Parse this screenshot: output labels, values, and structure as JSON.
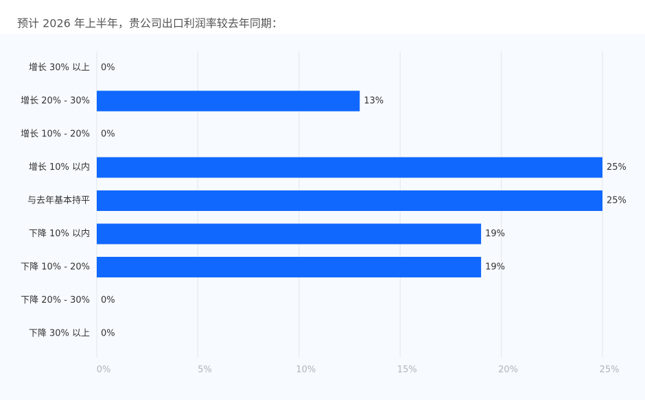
{
  "chart_data": {
    "type": "bar",
    "orientation": "horizontal",
    "title": "预计 2026 年上半年，贵公司出口利润率较去年同期：",
    "categories": [
      "增长 30% 以上",
      "增长 20% - 30%",
      "增长 10% - 20%",
      "增长 10% 以内",
      "与去年基本持平",
      "下降 10% 以内",
      "下降 10% - 20%",
      "下降 20% - 30%",
      "下降 30% 以上"
    ],
    "values": [
      0,
      13,
      0,
      25,
      25,
      19,
      19,
      0,
      0
    ],
    "value_labels": [
      "0%",
      "13%",
      "0%",
      "25%",
      "25%",
      "19%",
      "19%",
      "0%",
      "0%"
    ],
    "color": "#1068ff",
    "xlim": [
      0,
      25
    ],
    "xticks": [
      {
        "value": 0,
        "label": "0%"
      },
      {
        "value": 5,
        "label": "5%"
      },
      {
        "value": 10,
        "label": "10%"
      },
      {
        "value": 15,
        "label": "15%"
      },
      {
        "value": 20,
        "label": "20%"
      },
      {
        "value": 25,
        "label": "25%"
      }
    ],
    "grid": true
  }
}
